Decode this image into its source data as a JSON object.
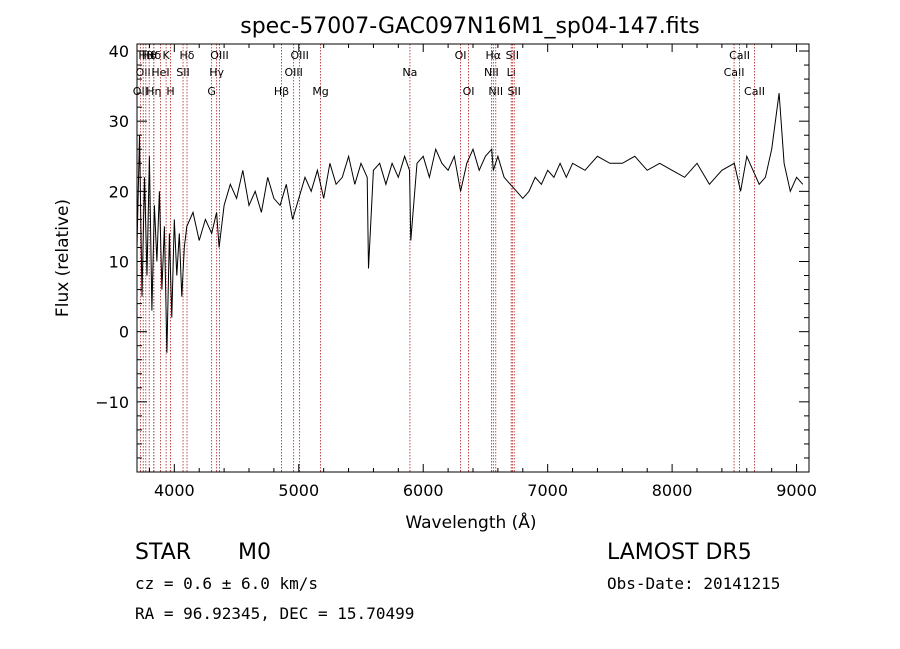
{
  "chart_data": {
    "type": "line",
    "title": "spec-57007-GAC097N16M1_sp04-147.fits",
    "xlabel": "Wavelength (Å)",
    "ylabel": "Flux (relative)",
    "xlim": [
      3700,
      9100
    ],
    "ylim": [
      -20,
      41
    ],
    "xticks": [
      4000,
      5000,
      6000,
      7000,
      8000,
      9000
    ],
    "yticks": [
      -10,
      0,
      10,
      20,
      30,
      40
    ],
    "grid": false,
    "line_color": "#000000",
    "marker_color": "#b22222",
    "series": [
      {
        "x": [
          3700,
          3720,
          3740,
          3760,
          3780,
          3800,
          3820,
          3840,
          3860,
          3880,
          3900,
          3920,
          3940,
          3960,
          3980,
          4000,
          4020,
          4040,
          4060,
          4080,
          4100,
          4150,
          4200,
          4250,
          4300,
          4340,
          4360,
          4400,
          4450,
          4500,
          4550,
          4600,
          4650,
          4700,
          4750,
          4800,
          4850,
          4900,
          4950,
          5000,
          5050,
          5100,
          5150,
          5200,
          5250,
          5300,
          5350,
          5400,
          5450,
          5500,
          5550,
          5560,
          5600,
          5650,
          5700,
          5750,
          5800,
          5850,
          5890,
          5900,
          5950,
          6000,
          6050,
          6100,
          6150,
          6200,
          6250,
          6300,
          6350,
          6400,
          6450,
          6500,
          6550,
          6563,
          6600,
          6650,
          6700,
          6750,
          6800,
          6850,
          6900,
          6950,
          7000,
          7050,
          7100,
          7150,
          7200,
          7300,
          7400,
          7500,
          7600,
          7700,
          7800,
          7900,
          8000,
          8100,
          8200,
          8300,
          8400,
          8500,
          8550,
          8600,
          8650,
          8700,
          8750,
          8800,
          8830,
          8860,
          8900,
          8950,
          9000,
          9050
        ],
        "y": [
          12,
          28,
          5,
          22,
          8,
          25,
          3,
          18,
          10,
          20,
          6,
          15,
          -3,
          14,
          2,
          16,
          8,
          14,
          5,
          12,
          15,
          17,
          13,
          16,
          14,
          17,
          12,
          18,
          21,
          19,
          23,
          18,
          20,
          17,
          22,
          19,
          18,
          21,
          16,
          19,
          22,
          20,
          23,
          19,
          24,
          21,
          22,
          25,
          21,
          24,
          22,
          9,
          23,
          24,
          21,
          24,
          22,
          25,
          23,
          13,
          24,
          25,
          22,
          26,
          24,
          23,
          25,
          20,
          24,
          26,
          23,
          25,
          26,
          23,
          25,
          22,
          21,
          20,
          19,
          20,
          22,
          21,
          23,
          22,
          24,
          22,
          24,
          23,
          25,
          24,
          24,
          25,
          23,
          24,
          23,
          22,
          24,
          21,
          23,
          24,
          20,
          25,
          23,
          21,
          22,
          26,
          30,
          34,
          24,
          20,
          22,
          21
        ]
      }
    ],
    "lines": [
      {
        "wl": 3727,
        "row": 3,
        "label": "OII"
      },
      {
        "wl": 3750,
        "row": 2,
        "label": "OII"
      },
      {
        "wl": 3771,
        "row": 1,
        "label": "Hθ"
      },
      {
        "wl": 3798,
        "row": 1,
        "label": "Hθ"
      },
      {
        "wl": 3835,
        "row": 1,
        "label": "Hδ"
      },
      {
        "wl": 3835,
        "row": 3,
        "label": "Hη"
      },
      {
        "wl": 3889,
        "row": 2,
        "label": "HeI"
      },
      {
        "wl": 3934,
        "row": 1,
        "label": "K"
      },
      {
        "wl": 3969,
        "row": 3,
        "label": "H"
      },
      {
        "wl": 4070,
        "row": 2,
        "label": "SII"
      },
      {
        "wl": 4102,
        "row": 1,
        "label": "Hδ"
      },
      {
        "wl": 4300,
        "row": 3,
        "label": "G"
      },
      {
        "wl": 4340,
        "row": 2,
        "label": "Hγ"
      },
      {
        "wl": 4363,
        "row": 1,
        "label": "OIII"
      },
      {
        "wl": 4861,
        "row": 3,
        "label": "Hβ"
      },
      {
        "wl": 4959,
        "row": 2,
        "label": "OIII"
      },
      {
        "wl": 5007,
        "row": 1,
        "label": "OIII"
      },
      {
        "wl": 5175,
        "row": 3,
        "label": "Mg"
      },
      {
        "wl": 5893,
        "row": 2,
        "label": "Na"
      },
      {
        "wl": 6300,
        "row": 1,
        "label": "OI"
      },
      {
        "wl": 6364,
        "row": 3,
        "label": "OI"
      },
      {
        "wl": 6548,
        "row": 2,
        "label": "NII"
      },
      {
        "wl": 6563,
        "row": 1,
        "label": "Hα"
      },
      {
        "wl": 6583,
        "row": 3,
        "label": "NII"
      },
      {
        "wl": 6707,
        "row": 2,
        "label": "Li"
      },
      {
        "wl": 6716,
        "row": 1,
        "label": "SII"
      },
      {
        "wl": 6731,
        "row": 3,
        "label": "SII"
      },
      {
        "wl": 8498,
        "row": 2,
        "label": "CaII"
      },
      {
        "wl": 8542,
        "row": 1,
        "label": "CaII"
      },
      {
        "wl": 8662,
        "row": 3,
        "label": "CaII"
      }
    ]
  },
  "info": {
    "class_label": "STAR",
    "subclass_label": "M0",
    "survey": "LAMOST DR5",
    "cz": "cz = 0.6 ± 6.0 km/s",
    "obs_date": "Obs-Date: 20141215",
    "radec": "RA =  96.92345, DEC =  15.70499"
  }
}
